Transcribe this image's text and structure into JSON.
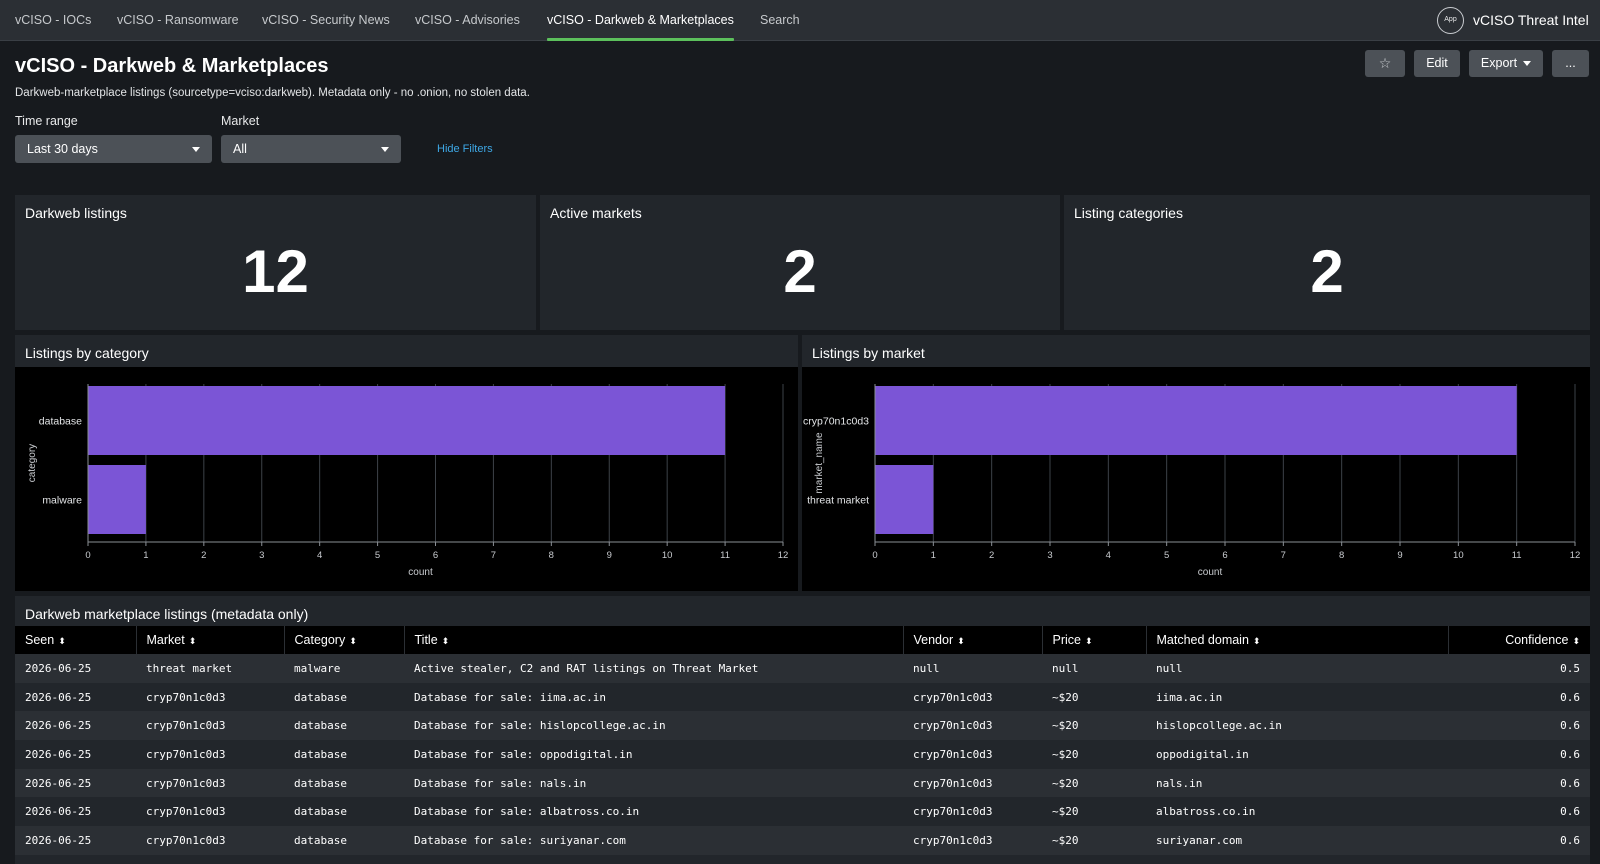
{
  "nav": {
    "tabs": [
      {
        "label": "vCISO - IOCs"
      },
      {
        "label": "vCISO - Ransomware"
      },
      {
        "label": "vCISO - Security News"
      },
      {
        "label": "vCISO - Advisories"
      },
      {
        "label": "vCISO - Darkweb & Marketplaces"
      },
      {
        "label": "Search"
      }
    ],
    "active_tab": "vCISO - Darkweb & Marketplaces",
    "app_badge": "App",
    "app_title": "vCISO Threat Intel"
  },
  "header": {
    "title": "vCISO - Darkweb & Marketplaces",
    "description": "Darkweb-marketplace listings (sourcetype=vciso:darkweb). Metadata only - no .onion, no stolen data.",
    "star_icon": "☆",
    "edit_label": "Edit",
    "export_label": "Export",
    "more_label": "..."
  },
  "filters": {
    "time_range_label": "Time range",
    "time_range_value": "Last 30 days",
    "market_label": "Market",
    "market_value": "All",
    "hide_filters_label": "Hide Filters"
  },
  "single_values": [
    {
      "title": "Darkweb listings",
      "value": "12"
    },
    {
      "title": "Active markets",
      "value": "2"
    },
    {
      "title": "Listing categories",
      "value": "2"
    }
  ],
  "colors": {
    "bar": "#7b55d6",
    "accent_tab": "#5cc05c",
    "link": "#3ea8e6"
  },
  "chart_data": [
    {
      "type": "bar",
      "orientation": "horizontal",
      "title": "Listings by category",
      "categories": [
        "database",
        "malware"
      ],
      "values": [
        11,
        1
      ],
      "xlabel": "count",
      "ylabel": "category",
      "xlim": [
        0,
        12
      ],
      "xticks": [
        "0",
        "1",
        "2",
        "3",
        "4",
        "5",
        "6",
        "7",
        "8",
        "9",
        "10",
        "11",
        "12"
      ],
      "grid": true
    },
    {
      "type": "bar",
      "orientation": "horizontal",
      "title": "Listings by market",
      "categories": [
        "cryp70n1c0d3",
        "threat market"
      ],
      "values": [
        11,
        1
      ],
      "xlabel": "count",
      "ylabel": "market_name",
      "xlim": [
        0,
        12
      ],
      "xticks": [
        "0",
        "1",
        "2",
        "3",
        "4",
        "5",
        "6",
        "7",
        "8",
        "9",
        "10",
        "11",
        "12"
      ],
      "grid": true
    }
  ],
  "table": {
    "title": "Darkweb marketplace listings (metadata only)",
    "sort_icon": "⬍",
    "columns": [
      "Seen",
      "Market",
      "Category",
      "Title",
      "Vendor",
      "Price",
      "Matched domain",
      "Confidence"
    ],
    "rows": [
      [
        "2026-06-25",
        "threat market",
        "malware",
        "Active stealer, C2 and RAT listings on Threat Market",
        "null",
        "null",
        "null",
        "0.5"
      ],
      [
        "2026-06-25",
        "cryp70n1c0d3",
        "database",
        "Database for sale: iima.ac.in",
        "cryp70n1c0d3",
        "~$20",
        "iima.ac.in",
        "0.6"
      ],
      [
        "2026-06-25",
        "cryp70n1c0d3",
        "database",
        "Database for sale: hislopcollege.ac.in",
        "cryp70n1c0d3",
        "~$20",
        "hislopcollege.ac.in",
        "0.6"
      ],
      [
        "2026-06-25",
        "cryp70n1c0d3",
        "database",
        "Database for sale: oppodigital.in",
        "cryp70n1c0d3",
        "~$20",
        "oppodigital.in",
        "0.6"
      ],
      [
        "2026-06-25",
        "cryp70n1c0d3",
        "database",
        "Database for sale: nals.in",
        "cryp70n1c0d3",
        "~$20",
        "nals.in",
        "0.6"
      ],
      [
        "2026-06-25",
        "cryp70n1c0d3",
        "database",
        "Database for sale: albatross.co.in",
        "cryp70n1c0d3",
        "~$20",
        "albatross.co.in",
        "0.6"
      ],
      [
        "2026-06-25",
        "cryp70n1c0d3",
        "database",
        "Database for sale: suriyanar.com",
        "cryp70n1c0d3",
        "~$20",
        "suriyanar.com",
        "0.6"
      ]
    ]
  }
}
